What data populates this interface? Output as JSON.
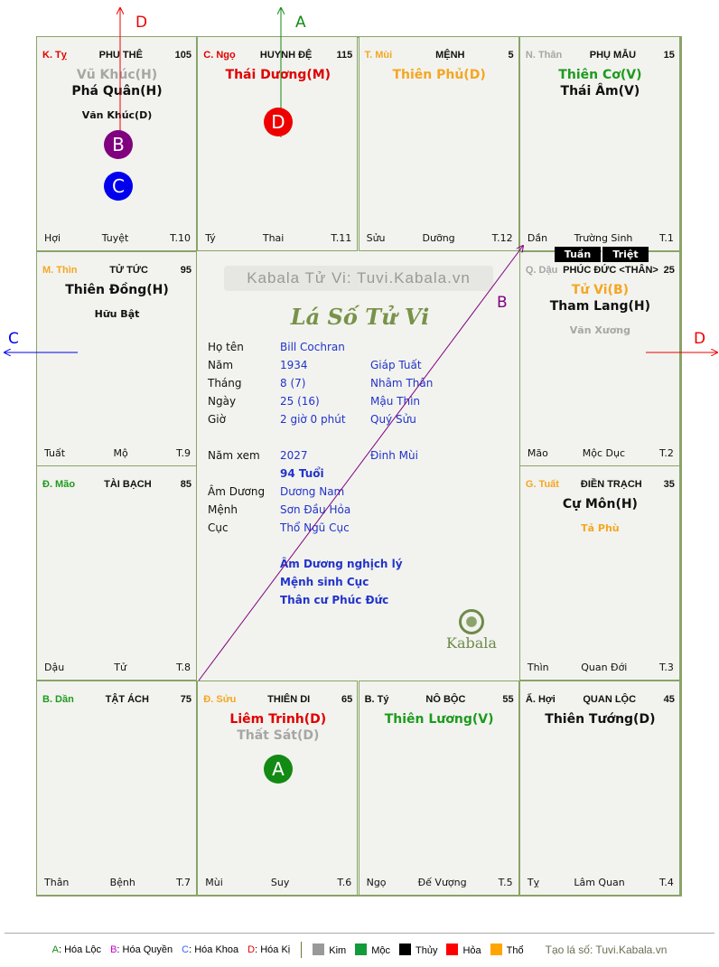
{
  "palaces": [
    {
      "can": "K. Tỵ",
      "can_color": "#e00000",
      "name": "PHU THÊ",
      "num": "105",
      "stars": [
        {
          "t": "Vũ Khúc(H)",
          "c": "#a6a6a6",
          "k": "major"
        },
        {
          "t": "Phá Quân(H)",
          "c": "#111111",
          "k": "major"
        },
        {
          "t": "Văn Khúc(D)",
          "c": "#111111",
          "k": "minor"
        }
      ],
      "foot": [
        "Hợi",
        "Tuyệt",
        "T.10"
      ]
    },
    {
      "can": "C. Ngọ",
      "can_color": "#e00000",
      "name": "HUYNH ĐỆ",
      "num": "115",
      "stars": [
        {
          "t": "Thái Dương(M)",
          "c": "#e00000",
          "k": "major"
        }
      ],
      "foot": [
        "Tý",
        "Thai",
        "T.11"
      ]
    },
    {
      "can": "T. Mùi",
      "can_color": "#f5a623",
      "name": "MỆNH",
      "num": "5",
      "stars": [
        {
          "t": "Thiên Phủ(D)",
          "c": "#f5a623",
          "k": "major"
        }
      ],
      "foot": [
        "Sửu",
        "Dưỡng",
        "T.12"
      ]
    },
    {
      "can": "N. Thân",
      "can_color": "#a6a6a6",
      "name": "PHỤ MẪU",
      "num": "15",
      "stars": [
        {
          "t": "Thiên Cơ(V)",
          "c": "#1e9a1e",
          "k": "major"
        },
        {
          "t": "Thái Âm(V)",
          "c": "#111111",
          "k": "major"
        }
      ],
      "foot": [
        "Dần",
        "Trường Sinh",
        "T.1"
      ]
    },
    {
      "can": "M. Thìn",
      "can_color": "#f5a623",
      "name": "TỬ TỨC",
      "num": "95",
      "stars": [
        {
          "t": "Thiên Đồng(H)",
          "c": "#111111",
          "k": "major"
        },
        {
          "t": "Hữu Bật",
          "c": "#111111",
          "k": "minor"
        }
      ],
      "foot": [
        "Tuất",
        "Mộ",
        "T.9"
      ]
    },
    {
      "can": "Q. Dậu",
      "can_color": "#a6a6a6",
      "name": "PHÚC ĐỨC <THÂN>",
      "num": "25",
      "stars": [
        {
          "t": "Tử Vi(B)",
          "c": "#f5a623",
          "k": "major"
        },
        {
          "t": "Tham Lang(H)",
          "c": "#111111",
          "k": "major"
        },
        {
          "t": "Văn Xương",
          "c": "#a6a6a6",
          "k": "minor"
        }
      ],
      "foot": [
        "Mão",
        "Mộc Dục",
        "T.2"
      ]
    },
    {
      "can": "Đ. Mão",
      "can_color": "#1e9a1e",
      "name": "TÀI BẠCH",
      "num": "85",
      "stars": [],
      "foot": [
        "Dậu",
        "Tử",
        "T.8"
      ]
    },
    {
      "can": "G. Tuất",
      "can_color": "#f5a623",
      "name": "ĐIỀN TRẠCH",
      "num": "35",
      "stars": [
        {
          "t": "Cự Môn(H)",
          "c": "#111111",
          "k": "major"
        },
        {
          "t": "Tả Phù",
          "c": "#f5a623",
          "k": "minor"
        }
      ],
      "foot": [
        "Thìn",
        "Quan Đới",
        "T.3"
      ]
    },
    {
      "can": "B. Dần",
      "can_color": "#1e9a1e",
      "name": "TẬT ÁCH",
      "num": "75",
      "stars": [],
      "foot": [
        "Thân",
        "Bệnh",
        "T.7"
      ]
    },
    {
      "can": "Đ. Sửu",
      "can_color": "#f5a623",
      "name": "THIÊN DI",
      "num": "65",
      "stars": [
        {
          "t": "Liêm Trinh(D)",
          "c": "#e00000",
          "k": "major"
        },
        {
          "t": "Thất Sát(D)",
          "c": "#a6a6a6",
          "k": "major"
        }
      ],
      "foot": [
        "Mùi",
        "Suy",
        "T.6"
      ]
    },
    {
      "can": "B. Tý",
      "can_color": "#111111",
      "name": "NÔ BỘC",
      "num": "55",
      "stars": [
        {
          "t": "Thiên Lương(V)",
          "c": "#1e9a1e",
          "k": "major"
        }
      ],
      "foot": [
        "Ngọ",
        "Đế Vượng",
        "T.5"
      ]
    },
    {
      "can": "Ấ. Hợi",
      "can_color": "#111111",
      "name": "QUAN LỘC",
      "num": "45",
      "stars": [
        {
          "t": "Thiên Tướng(D)",
          "c": "#111111",
          "k": "major"
        }
      ],
      "foot": [
        "Tỵ",
        "Lâm Quan",
        "T.4"
      ]
    }
  ],
  "badges": {
    "tuan": "Tuần",
    "triet": "Triệt"
  },
  "center": {
    "watermark": "Kabala Tử Vi: Tuvi.Kabala.vn",
    "title": "Lá Số Tử Vi",
    "rows": [
      {
        "k": "Họ tên",
        "v": "Bill Cochran",
        "w": ""
      },
      {
        "k": "Năm",
        "v": "1934",
        "w": "Giáp Tuất"
      },
      {
        "k": "Tháng",
        "v": "8  (7)",
        "w": "Nhâm Thân"
      },
      {
        "k": "Ngày",
        "v": "25  (16)",
        "w": "Mậu Thìn"
      },
      {
        "k": "Giờ",
        "v": "2 giờ 0 phút",
        "w": "Quý Sửu"
      },
      {
        "k": "Năm xem",
        "v": "2027",
        "w": "Đinh Mùi"
      },
      {
        "k": "",
        "v": "94 Tuổi",
        "w": ""
      },
      {
        "k": "Âm Dương",
        "v": "Dương Nam",
        "w": ""
      },
      {
        "k": "Mệnh",
        "v": "Sơn Đầu Hỏa",
        "w": ""
      },
      {
        "k": "Cục",
        "v": "Thổ Ngũ Cục",
        "w": ""
      }
    ],
    "notes": [
      "Âm Dương nghịch lý",
      "Mệnh sinh Cục",
      "Thân cư Phúc Đức"
    ],
    "logo_text": "Kabala"
  },
  "markers": {
    "A": "A",
    "B": "B",
    "C": "C",
    "D": "D"
  },
  "arrows": {
    "top_left": "D",
    "top_center": "A",
    "left": "C",
    "right": "D",
    "diagonal": "B"
  },
  "colors": {
    "A": "#138a13",
    "B": "#800080",
    "C": "#0000ee",
    "D": "#ee0000"
  },
  "legend": {
    "hoa": [
      {
        "letter": "A",
        "text": ": Hóa Lộc",
        "color": "#138a13"
      },
      {
        "letter": "B",
        "text": ": Hóa Quyền",
        "color": "#cc00cc"
      },
      {
        "letter": "C",
        "text": ": Hóa Khoa",
        "color": "#3366ff"
      },
      {
        "letter": "D",
        "text": ": Hóa Kị",
        "color": "#ee0000"
      }
    ],
    "elements": [
      {
        "name": "Kim",
        "color": "#999999"
      },
      {
        "name": "Mộc",
        "color": "#139a3a"
      },
      {
        "name": "Thủy",
        "color": "#000000"
      },
      {
        "name": "Hỏa",
        "color": "#ff0000"
      },
      {
        "name": "Thổ",
        "color": "#ffa500"
      }
    ],
    "credit": "Tạo lá số: Tuvi.Kabala.vn"
  }
}
